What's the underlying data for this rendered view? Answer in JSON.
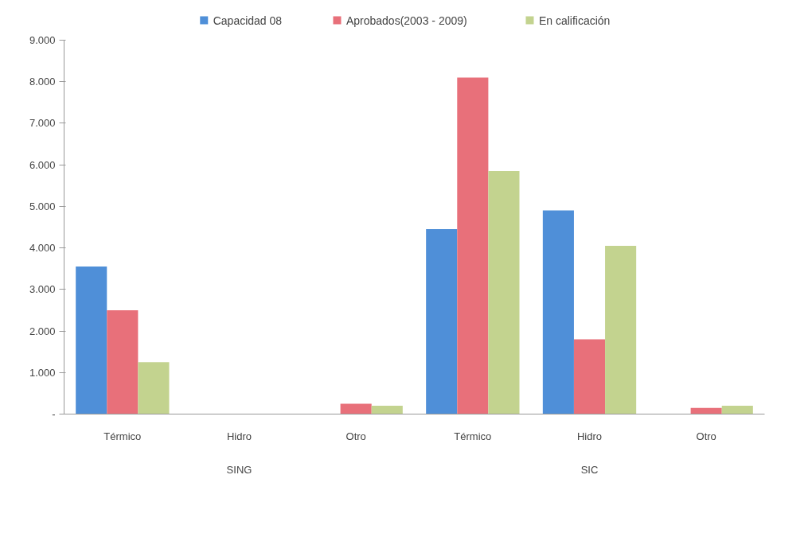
{
  "chart_data": {
    "type": "bar",
    "categories": [
      "Térmico",
      "Hidro",
      "Otro",
      "Térmico",
      "Hidro",
      "Otro"
    ],
    "series": [
      {
        "name": "Capacidad 08",
        "color": "#4f8fd8",
        "values": [
          3550,
          0,
          0,
          4450,
          4900,
          0
        ]
      },
      {
        "name": "Aprobados(2003 - 2009)",
        "color": "#e8707a",
        "values": [
          2500,
          0,
          250,
          8100,
          1800,
          150
        ]
      },
      {
        "name": "En calificación",
        "color": "#c3d38f",
        "values": [
          1250,
          0,
          200,
          5850,
          4050,
          200
        ]
      }
    ],
    "ylim": [
      0,
      9000
    ],
    "yticks": [
      {
        "value": 0,
        "label": "-"
      },
      {
        "value": 1000,
        "label": "1.000"
      },
      {
        "value": 2000,
        "label": "2.000"
      },
      {
        "value": 3000,
        "label": "3.000"
      },
      {
        "value": 4000,
        "label": "4.000"
      },
      {
        "value": 5000,
        "label": "5.000"
      },
      {
        "value": 6000,
        "label": "6.000"
      },
      {
        "value": 7000,
        "label": "7.000"
      },
      {
        "value": 8000,
        "label": "8.000"
      },
      {
        "value": 9000,
        "label": "9.000"
      }
    ],
    "annotations": [
      "SING",
      "SIC"
    ],
    "legend": "top",
    "grid": false
  }
}
